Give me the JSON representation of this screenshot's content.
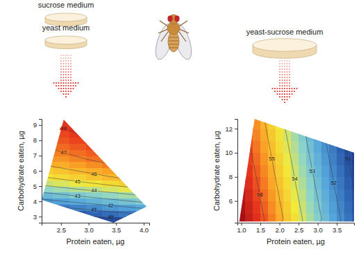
{
  "chart_data": [
    {
      "type": "contour",
      "annotations": [
        "sucrose medium",
        "yeast medium"
      ],
      "x_label": "Protein eaten, µg",
      "y_label": "Carbohydrate eaten, µg",
      "xlim": [
        2.15,
        4.1
      ],
      "ylim": [
        2.6,
        9.4
      ],
      "xticks": [
        2.5,
        {
          "value": 3,
          "label": "3.0"
        },
        3.5,
        {
          "value": 4,
          "label": "4.0"
        }
      ],
      "yticks": [
        3,
        4,
        5,
        6,
        7,
        8,
        9
      ],
      "region_x": [
        2.55,
        4.05,
        3.45,
        2.15
      ],
      "region_y": [
        9.35,
        3.65,
        2.6,
        4.1
      ],
      "zlim": [
        38.7,
        49.4
      ],
      "levels": [
        40,
        41,
        42,
        43,
        44,
        45,
        46,
        47,
        48
      ],
      "x": [
        2.2,
        2.5,
        2.8,
        3.1,
        3.4,
        3.7,
        4.0
      ],
      "y": [
        2.8,
        3.2,
        3.6,
        4.0,
        4.4,
        4.8,
        5.2,
        5.6,
        6.0,
        6.4,
        6.8,
        7.2,
        7.6,
        8.0,
        8.4,
        8.8,
        9.2
      ],
      "z": [
        [
          38.72,
          38.96,
          39.2,
          39.44,
          39.68,
          39.92,
          40.16
        ],
        [
          39.72,
          39.96,
          40.2,
          40.44,
          40.68,
          40.92,
          41.16
        ],
        [
          40.72,
          40.96,
          41.2,
          41.44,
          41.68,
          41.92,
          42.16
        ],
        [
          41.72,
          41.96,
          42.2,
          42.44,
          42.68,
          42.92,
          43.16
        ],
        [
          42.62,
          42.86,
          43.1,
          43.34,
          43.58,
          43.82,
          44.06
        ],
        [
          43.52,
          43.76,
          44.0,
          44.24,
          44.48,
          44.72,
          44.96
        ],
        [
          44.32,
          44.56,
          44.8,
          45.04,
          45.28,
          45.52,
          45.76
        ],
        [
          45.02,
          45.26,
          45.5,
          45.74,
          45.98,
          46.22,
          46.46
        ],
        [
          45.52,
          45.76,
          46.0,
          46.24,
          46.48,
          46.72,
          46.96
        ],
        [
          46.02,
          46.26,
          46.5,
          46.74,
          46.98,
          47.22,
          47.46
        ],
        [
          46.42,
          46.66,
          46.9,
          47.14,
          47.38,
          47.62,
          47.86
        ],
        [
          46.72,
          46.96,
          47.2,
          47.44,
          47.68,
          47.92,
          48.16
        ],
        [
          47.02,
          47.26,
          47.5,
          47.74,
          47.98,
          48.22,
          48.46
        ],
        [
          47.32,
          47.56,
          47.8,
          48.04,
          48.28,
          48.52,
          48.76
        ],
        [
          47.52,
          47.76,
          48.0,
          48.24,
          48.48,
          48.72,
          48.96
        ],
        [
          47.72,
          47.96,
          48.2,
          48.44,
          48.68,
          48.92,
          49.16
        ],
        [
          47.92,
          48.16,
          48.4,
          48.64,
          48.88,
          49.12,
          49.36
        ]
      ]
    },
    {
      "type": "contour",
      "annotations": [
        "yeast-sucrose medium"
      ],
      "x_label": "Protein eaten, µg",
      "y_label": "Carbohydrate eaten, µg",
      "xlim": [
        0.9,
        3.95
      ],
      "ylim": [
        4.2,
        12.8
      ],
      "xticks": [
        {
          "value": 1,
          "label": "1.0"
        },
        1.5,
        {
          "value": 2,
          "label": "2.0"
        },
        2.5,
        {
          "value": 3,
          "label": "3.0"
        },
        3.5
      ],
      "yticks": [
        6,
        8,
        10,
        12
      ],
      "region_x": [
        1.35,
        3.95,
        3.95,
        0.95
      ],
      "region_y": [
        12.8,
        10.0,
        4.3,
        4.3
      ],
      "zlim": [
        50.2,
        57.2
      ],
      "levels": [
        51,
        52,
        53,
        54,
        55,
        56
      ],
      "x": [
        1.0,
        1.2,
        1.4,
        1.6,
        1.8,
        2.0,
        2.2,
        2.4,
        2.6,
        2.8,
        3.0,
        3.2,
        3.4,
        3.6,
        3.8,
        4.0
      ],
      "y": [
        4.5,
        5.5,
        6.5,
        7.5,
        8.5,
        9.5,
        10.5,
        11.5,
        12.5
      ],
      "z": [
        [
          57.2,
          56.8,
          56.4,
          56.0,
          55.6,
          55.2,
          54.8,
          54.4,
          54.0,
          53.6,
          53.2,
          52.8,
          52.4,
          52.0,
          51.6,
          51.2
        ],
        [
          57.08,
          56.68,
          56.28,
          55.88,
          55.48,
          55.08,
          54.68,
          54.28,
          53.88,
          53.48,
          53.08,
          52.68,
          52.28,
          51.88,
          51.48,
          51.08
        ],
        [
          56.96,
          56.56,
          56.16,
          55.76,
          55.36,
          54.96,
          54.56,
          54.16,
          53.76,
          53.36,
          52.96,
          52.56,
          52.16,
          51.76,
          51.36,
          50.96
        ],
        [
          56.84,
          56.44,
          56.04,
          55.64,
          55.24,
          54.84,
          54.44,
          54.04,
          53.64,
          53.24,
          52.84,
          52.44,
          52.04,
          51.64,
          51.24,
          50.84
        ],
        [
          56.72,
          56.32,
          55.92,
          55.52,
          55.12,
          54.72,
          54.32,
          53.92,
          53.52,
          53.12,
          52.72,
          52.32,
          51.92,
          51.52,
          51.12,
          50.72
        ],
        [
          56.6,
          56.2,
          55.8,
          55.4,
          55.0,
          54.6,
          54.2,
          53.8,
          53.4,
          53.0,
          52.6,
          52.2,
          51.8,
          51.4,
          51.0,
          50.6
        ],
        [
          56.48,
          56.08,
          55.68,
          55.28,
          54.88,
          54.48,
          54.08,
          53.68,
          53.28,
          52.88,
          52.48,
          52.08,
          51.68,
          51.28,
          50.88,
          50.48
        ],
        [
          56.36,
          55.96,
          55.56,
          55.16,
          54.76,
          54.36,
          53.96,
          53.56,
          53.16,
          52.76,
          52.36,
          51.96,
          51.56,
          51.16,
          50.76,
          50.36
        ],
        [
          56.24,
          55.84,
          55.44,
          55.04,
          54.64,
          54.24,
          53.84,
          53.44,
          53.04,
          52.64,
          52.24,
          51.84,
          51.44,
          51.04,
          50.64,
          50.24
        ]
      ]
    }
  ]
}
